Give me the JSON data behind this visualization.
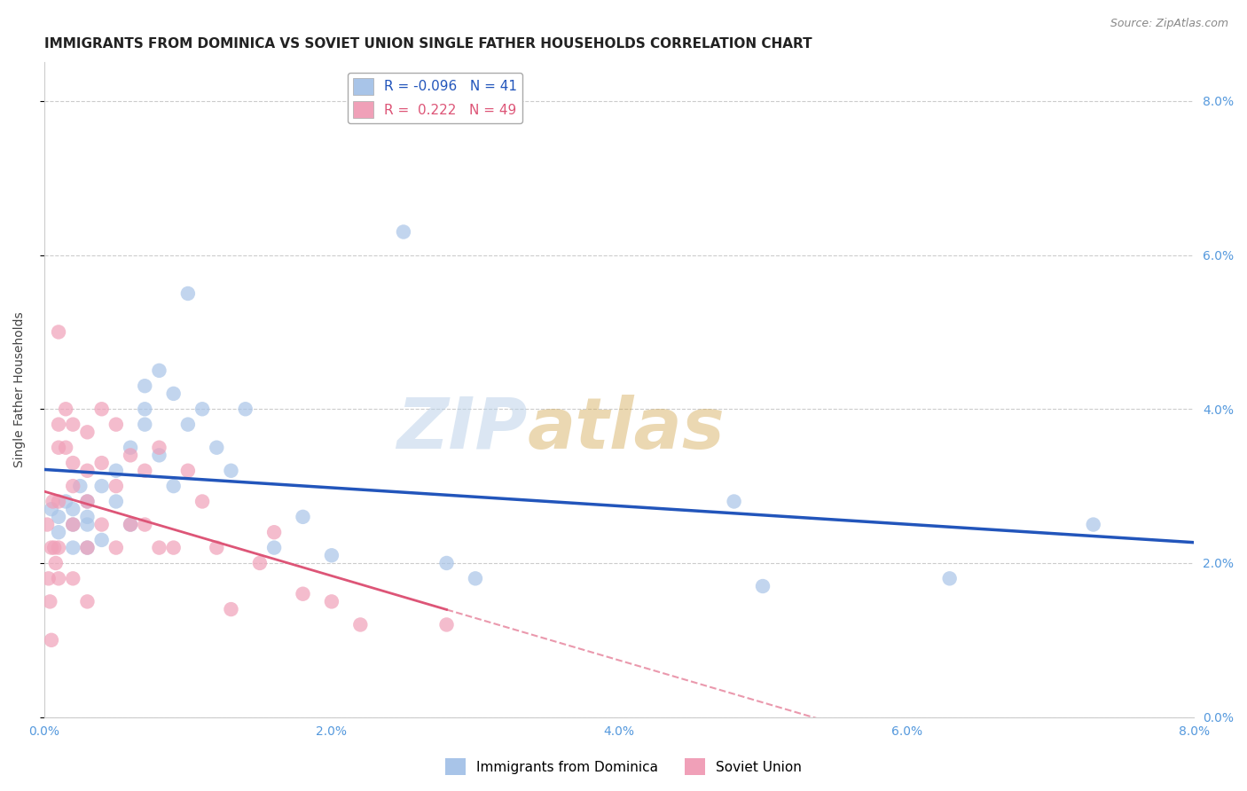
{
  "title": "IMMIGRANTS FROM DOMINICA VS SOVIET UNION SINGLE FATHER HOUSEHOLDS CORRELATION CHART",
  "source": "Source: ZipAtlas.com",
  "ylabel": "Single Father Households",
  "xlim": [
    0.0,
    0.08
  ],
  "ylim": [
    0.0,
    0.085
  ],
  "ytick_values": [
    0.0,
    0.02,
    0.04,
    0.06,
    0.08
  ],
  "xtick_values": [
    0.0,
    0.02,
    0.04,
    0.06,
    0.08
  ],
  "dominica_color": "#a8c4e8",
  "soviet_color": "#f0a0b8",
  "dominica_R": -0.096,
  "dominica_N": 41,
  "soviet_R": 0.222,
  "soviet_N": 49,
  "legend_label_dominica": "Immigrants from Dominica",
  "legend_label_soviet": "Soviet Union",
  "watermark_zip": "ZIP",
  "watermark_atlas": "atlas",
  "dominica_x": [
    0.0005,
    0.001,
    0.001,
    0.0015,
    0.002,
    0.002,
    0.002,
    0.0025,
    0.003,
    0.003,
    0.003,
    0.003,
    0.004,
    0.004,
    0.005,
    0.005,
    0.006,
    0.006,
    0.007,
    0.007,
    0.007,
    0.008,
    0.008,
    0.009,
    0.009,
    0.01,
    0.01,
    0.011,
    0.012,
    0.013,
    0.014,
    0.016,
    0.018,
    0.02,
    0.025,
    0.028,
    0.03,
    0.048,
    0.05,
    0.063,
    0.073
  ],
  "dominica_y": [
    0.027,
    0.026,
    0.024,
    0.028,
    0.027,
    0.025,
    0.022,
    0.03,
    0.028,
    0.026,
    0.025,
    0.022,
    0.03,
    0.023,
    0.032,
    0.028,
    0.035,
    0.025,
    0.043,
    0.04,
    0.038,
    0.045,
    0.034,
    0.042,
    0.03,
    0.055,
    0.038,
    0.04,
    0.035,
    0.032,
    0.04,
    0.022,
    0.026,
    0.021,
    0.063,
    0.02,
    0.018,
    0.028,
    0.017,
    0.018,
    0.025
  ],
  "soviet_x": [
    0.0002,
    0.0003,
    0.0004,
    0.0005,
    0.0005,
    0.0006,
    0.0007,
    0.0008,
    0.001,
    0.001,
    0.001,
    0.001,
    0.001,
    0.001,
    0.0015,
    0.0015,
    0.002,
    0.002,
    0.002,
    0.002,
    0.002,
    0.003,
    0.003,
    0.003,
    0.003,
    0.003,
    0.004,
    0.004,
    0.004,
    0.005,
    0.005,
    0.005,
    0.006,
    0.006,
    0.007,
    0.007,
    0.008,
    0.008,
    0.009,
    0.01,
    0.011,
    0.012,
    0.013,
    0.015,
    0.016,
    0.018,
    0.02,
    0.022,
    0.028
  ],
  "soviet_y": [
    0.025,
    0.018,
    0.015,
    0.022,
    0.01,
    0.028,
    0.022,
    0.02,
    0.05,
    0.038,
    0.035,
    0.028,
    0.022,
    0.018,
    0.04,
    0.035,
    0.038,
    0.033,
    0.03,
    0.025,
    0.018,
    0.037,
    0.032,
    0.028,
    0.022,
    0.015,
    0.04,
    0.033,
    0.025,
    0.038,
    0.03,
    0.022,
    0.034,
    0.025,
    0.032,
    0.025,
    0.035,
    0.022,
    0.022,
    0.032,
    0.028,
    0.022,
    0.014,
    0.02,
    0.024,
    0.016,
    0.015,
    0.012,
    0.012
  ],
  "title_fontsize": 11,
  "source_fontsize": 9,
  "label_fontsize": 10,
  "tick_fontsize": 10,
  "legend_fontsize": 11,
  "background_color": "#ffffff",
  "grid_color": "#cccccc",
  "axis_color": "#5599dd",
  "trend_blue_color": "#2255bb",
  "trend_pink_color": "#dd5577"
}
